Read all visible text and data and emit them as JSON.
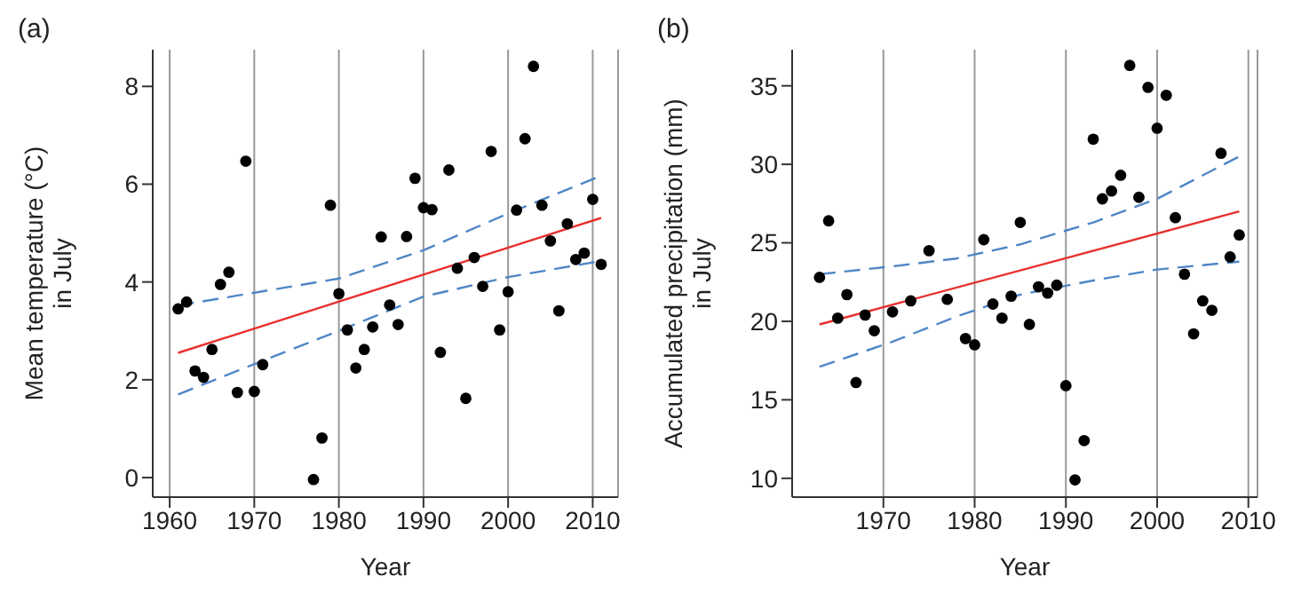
{
  "chart_data": [
    {
      "type": "scatter",
      "title": "(a)",
      "xlabel": "Year",
      "ylabel": "Mean temperature (°C)\nin July",
      "xlim": [
        1958,
        2013
      ],
      "xticks": [
        1960,
        1970,
        1980,
        1990,
        2000,
        2010
      ],
      "ylim": [
        -0.4,
        8.75
      ],
      "yticks": [
        0,
        2,
        4,
        6,
        8
      ],
      "grid": "x",
      "series": [
        {
          "type": "scatter",
          "marker": "circle",
          "color": "#000000",
          "x": [
            1961,
            1962,
            1963,
            1964,
            1965,
            1966,
            1967,
            1968,
            1969,
            1970,
            1971,
            1977,
            1978,
            1979,
            1980,
            1981,
            1982,
            1983,
            1984,
            1985,
            1986,
            1987,
            1988,
            1989,
            1990,
            1991,
            1992,
            1993,
            1994,
            1995,
            1996,
            1997,
            1998,
            1999,
            2000,
            2001,
            2002,
            2003,
            2004,
            2005,
            2006,
            2007,
            2008,
            2009,
            2010,
            2011
          ],
          "values": [
            3.45,
            3.59,
            2.18,
            2.05,
            2.62,
            3.95,
            4.2,
            1.74,
            6.47,
            1.76,
            2.31,
            -0.04,
            0.81,
            5.57,
            3.76,
            3.02,
            2.24,
            2.62,
            3.08,
            4.92,
            3.53,
            3.13,
            4.93,
            6.12,
            5.52,
            5.48,
            2.56,
            6.29,
            4.28,
            1.62,
            4.5,
            3.91,
            6.67,
            3.02,
            3.8,
            5.47,
            6.93,
            8.41,
            5.57,
            4.84,
            3.41,
            5.19,
            4.46,
            4.59,
            5.69,
            4.36
          ]
        },
        {
          "type": "line",
          "marker": "none",
          "line_style": "solid",
          "color": "#e8302e",
          "x": [
            1961,
            2011
          ],
          "values": [
            2.55,
            5.31
          ]
        },
        {
          "type": "line",
          "marker": "none",
          "line_style": "dashed",
          "color": "#4f86c6",
          "x": [
            1961,
            1970,
            1980,
            1990,
            2000,
            2011
          ],
          "values": [
            3.52,
            3.78,
            4.07,
            4.65,
            5.4,
            6.17
          ]
        },
        {
          "type": "line",
          "marker": "none",
          "line_style": "dashed",
          "color": "#4f86c6",
          "x": [
            1961,
            1970,
            1980,
            1990,
            2000,
            2011
          ],
          "values": [
            1.7,
            2.32,
            3.0,
            3.7,
            4.1,
            4.43
          ]
        }
      ]
    },
    {
      "type": "scatter",
      "title": "(b)",
      "xlabel": "Year",
      "ylabel": "Accumulated precipitation (mm)\nin July",
      "xlim": [
        1960,
        2011
      ],
      "xticks": [
        1970,
        1980,
        1990,
        2000,
        2010
      ],
      "ylim": [
        8.8,
        37.3
      ],
      "yticks": [
        10,
        15,
        20,
        25,
        30,
        35
      ],
      "grid": "x",
      "series": [
        {
          "type": "scatter",
          "marker": "circle",
          "color": "#000000",
          "x": [
            1963,
            1964,
            1965,
            1966,
            1967,
            1968,
            1969,
            1971,
            1973,
            1975,
            1977,
            1979,
            1980,
            1981,
            1982,
            1983,
            1984,
            1985,
            1986,
            1987,
            1988,
            1989,
            1990,
            1991,
            1992,
            1993,
            1994,
            1995,
            1996,
            1997,
            1998,
            1999,
            2000,
            2001,
            2002,
            2003,
            2004,
            2005,
            2006,
            2007,
            2008,
            2009
          ],
          "values": [
            22.8,
            26.4,
            20.2,
            21.7,
            16.1,
            20.4,
            19.4,
            20.6,
            21.3,
            24.5,
            21.4,
            18.9,
            18.5,
            25.2,
            21.1,
            20.2,
            21.6,
            26.3,
            19.8,
            22.2,
            21.8,
            22.3,
            15.9,
            9.9,
            12.4,
            31.6,
            27.8,
            28.3,
            29.3,
            36.3,
            27.9,
            34.9,
            32.3,
            34.4,
            26.6,
            23.0,
            19.2,
            21.3,
            20.7,
            30.7,
            24.1,
            25.5
          ]
        },
        {
          "type": "line",
          "marker": "none",
          "line_style": "solid",
          "color": "#e8302e",
          "x": [
            1963,
            2009
          ],
          "values": [
            19.8,
            27.0
          ]
        },
        {
          "type": "line",
          "marker": "none",
          "line_style": "dashed",
          "color": "#4f86c6",
          "x": [
            1963,
            1971,
            1978,
            1985,
            1993,
            2000,
            2009
          ],
          "values": [
            23.0,
            23.5,
            24.0,
            24.9,
            26.3,
            27.8,
            30.5
          ]
        },
        {
          "type": "line",
          "marker": "none",
          "line_style": "dashed",
          "color": "#4f86c6",
          "x": [
            1963,
            1971,
            1978,
            1985,
            1993,
            2000,
            2009
          ],
          "values": [
            17.1,
            18.7,
            20.3,
            21.7,
            22.6,
            23.3,
            23.8
          ]
        }
      ]
    }
  ]
}
